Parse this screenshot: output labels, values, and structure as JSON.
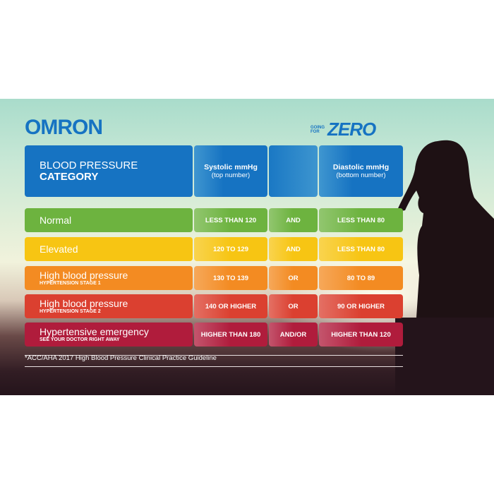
{
  "brand": {
    "logo": "OMRON",
    "slogan_small_1": "GOING",
    "slogan_small_2": "FOR",
    "slogan_big": "ZERO"
  },
  "header": {
    "title_line1": "BLOOD PRESSURE",
    "title_line2": "CATEGORY",
    "systolic": "Systolic mmHg",
    "systolic_sub": "(top number)",
    "diastolic": "Diastolic mmHg",
    "diastolic_sub": "(bottom number)"
  },
  "rows": [
    {
      "category": "Normal",
      "subtitle": "",
      "systolic": "LESS THAN 120",
      "connector": "AND",
      "diastolic": "LESS THAN 80",
      "color": "#6db33f"
    },
    {
      "category": "Elevated",
      "subtitle": "",
      "systolic": "120 TO 129",
      "connector": "AND",
      "diastolic": "LESS THAN 80",
      "color": "#f7c513"
    },
    {
      "category": "High blood pressure",
      "subtitle": "HYPERTENSION STAGE 1",
      "systolic": "130 TO 139",
      "connector": "OR",
      "diastolic": "80 TO 89",
      "color": "#f38b22"
    },
    {
      "category": "High blood pressure",
      "subtitle": "HYPERTENSION STAGE 2",
      "systolic": "140 OR HIGHER",
      "connector": "OR",
      "diastolic": "90 OR HIGHER",
      "color": "#db4030"
    },
    {
      "category": "Hypertensive emergency",
      "subtitle": "SEE YOUR DOCTOR RIGHT AWAY",
      "systolic": "HIGHER THAN 180",
      "connector": "AND/OR",
      "diastolic": "HIGHER THAN 120",
      "color": "#b01c3c"
    }
  ],
  "footnote": "*ACC/AHA 2017 High Blood Pressure Clinical Practice Guideline"
}
